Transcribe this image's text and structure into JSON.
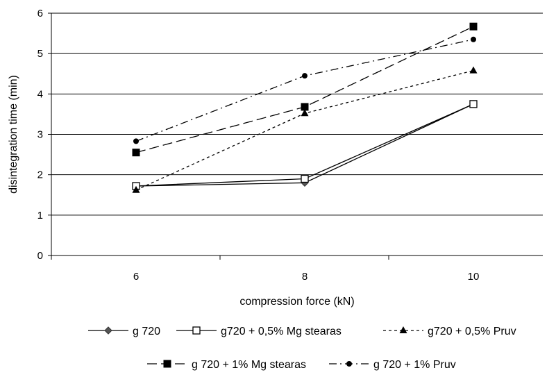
{
  "chart_data": {
    "type": "line",
    "xlabel": "compression force (kN)",
    "ylabel": "disintegration time (min)",
    "categories": [
      "6",
      "8",
      "10"
    ],
    "ylim": [
      0,
      6
    ],
    "yticks": [
      "0",
      "1",
      "2",
      "3",
      "4",
      "5",
      "6"
    ],
    "grid": "horizontal",
    "legend_position": "bottom",
    "series": [
      {
        "name": "g 720",
        "values": [
          1.72,
          1.8,
          3.75
        ],
        "marker": "diamond",
        "dash": "solid"
      },
      {
        "name": "g720 + 0,5% Mg stearas",
        "values": [
          1.72,
          1.9,
          3.75
        ],
        "marker": "square-open",
        "dash": "solid"
      },
      {
        "name": "g720 + 0,5% Pruv",
        "values": [
          1.62,
          3.52,
          4.58
        ],
        "marker": "triangle",
        "dash": "short-dash"
      },
      {
        "name": "g 720 + 1% Mg stearas",
        "values": [
          2.55,
          3.68,
          5.67
        ],
        "marker": "square",
        "dash": "long-dash"
      },
      {
        "name": "g 720 + 1% Pruv",
        "values": [
          2.83,
          4.45,
          5.35
        ],
        "marker": "circle",
        "dash": "dash-dot"
      }
    ]
  }
}
